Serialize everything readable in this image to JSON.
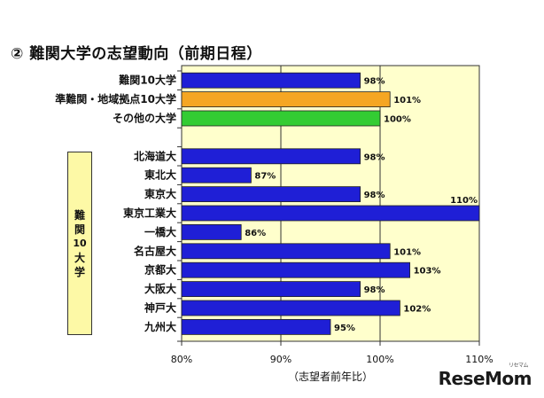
{
  "title": "② 難関大学の志望動向（前期日程）",
  "group_label": [
    "難",
    "関",
    "10",
    "大",
    "学"
  ],
  "logo_text": "ReseMom",
  "logo_kana": "リセマム",
  "colors": {
    "plot_bg": "#ffffcc",
    "bar_blue": "#1f1fd6",
    "bar_orange": "#f5a623",
    "bar_green": "#33cc33",
    "grid": "#333333"
  },
  "chart_data": {
    "type": "bar",
    "orientation": "horizontal",
    "xlabel": "（志望者前年比）",
    "xlim": [
      80,
      110
    ],
    "xticks": [
      "80%",
      "90%",
      "100%",
      "110%"
    ],
    "xtick_values": [
      80,
      90,
      100,
      110
    ],
    "categories": [
      "難関10大学",
      "準難関・地域拠点10大学",
      "その他の大学",
      "",
      "北海道大",
      "東北大",
      "東京大",
      "東京工業大",
      "一橋大",
      "名古屋大",
      "京都大",
      "大阪大",
      "神戸大",
      "九州大"
    ],
    "values": [
      98,
      101,
      100,
      null,
      98,
      87,
      98,
      110,
      86,
      101,
      103,
      98,
      102,
      95
    ],
    "value_labels": [
      "98%",
      "101%",
      "100%",
      "",
      "98%",
      "87%",
      "98%",
      "110%",
      "86%",
      "101%",
      "103%",
      "98%",
      "102%",
      "95%"
    ],
    "bar_colors": [
      "blue",
      "orange",
      "green",
      "",
      "blue",
      "blue",
      "blue",
      "blue",
      "blue",
      "blue",
      "blue",
      "blue",
      "blue",
      "blue"
    ],
    "grid": true
  }
}
